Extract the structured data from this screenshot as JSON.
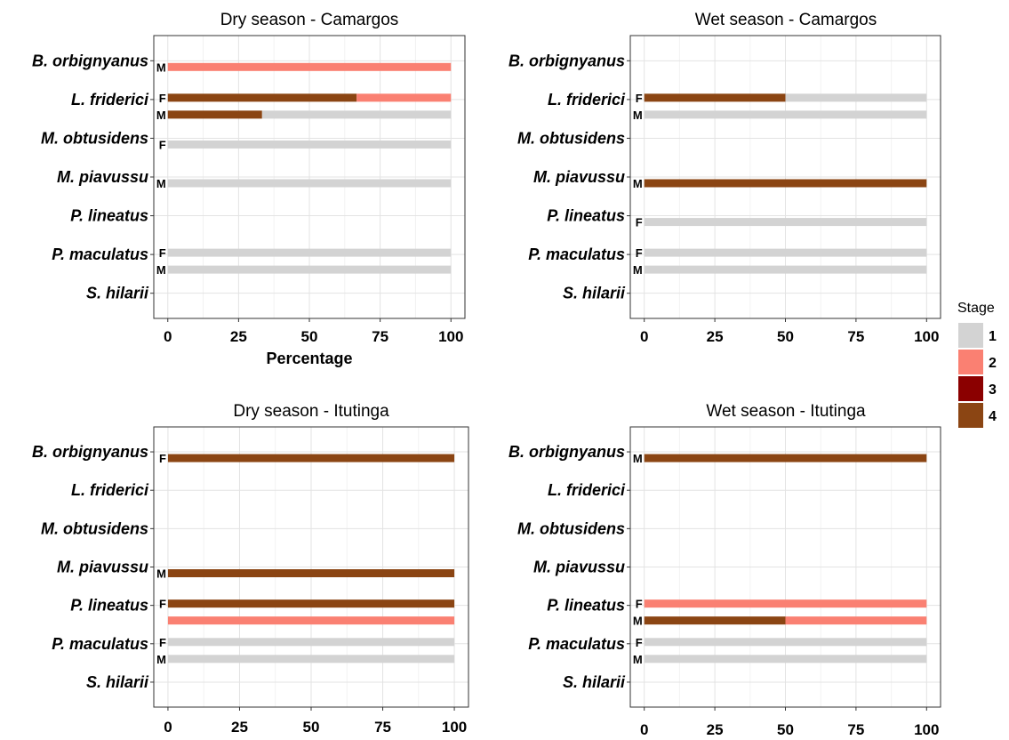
{
  "chart_data": {
    "type": "bar",
    "orientation": "horizontal",
    "stacked": true,
    "xlim": [
      0,
      100
    ],
    "xticks": [
      0,
      25,
      50,
      75,
      100
    ],
    "grid": true,
    "legend": {
      "title": "Stage",
      "placement": "right",
      "entries": [
        {
          "label": "1",
          "color": "#D3D3D3"
        },
        {
          "label": "2",
          "color": "#FA8072"
        },
        {
          "label": "3",
          "color": "#8B0000"
        },
        {
          "label": "4",
          "color": "#8B4513"
        }
      ]
    },
    "categories": [
      "B. orbignyanus",
      "L. friderici",
      "M. obtusidens",
      "M. piavussu",
      "P. lineatus",
      "P. maculatus",
      "S. hilarii"
    ],
    "panels": [
      {
        "title": "Dry season - Camargos",
        "xlabel": "Percentage",
        "bars": [
          {
            "species": "B. orbignyanus",
            "sex": "M",
            "segments": [
              {
                "stage": "2",
                "value": 100
              }
            ]
          },
          {
            "species": "L. friderici",
            "sex": "F",
            "segments": [
              {
                "stage": "4",
                "value": 66.7
              },
              {
                "stage": "2",
                "value": 33.3
              }
            ]
          },
          {
            "species": "L. friderici",
            "sex": "M",
            "segments": [
              {
                "stage": "4",
                "value": 33.3
              },
              {
                "stage": "1",
                "value": 66.7
              }
            ]
          },
          {
            "species": "M. obtusidens",
            "sex": "F",
            "segments": [
              {
                "stage": "1",
                "value": 100
              }
            ]
          },
          {
            "species": "M. piavussu",
            "sex": "M",
            "segments": [
              {
                "stage": "1",
                "value": 100
              }
            ]
          },
          {
            "species": "P. maculatus",
            "sex": "F",
            "segments": [
              {
                "stage": "1",
                "value": 100
              }
            ]
          },
          {
            "species": "P. maculatus",
            "sex": "M",
            "segments": [
              {
                "stage": "1",
                "value": 100
              }
            ]
          }
        ]
      },
      {
        "title": "Wet season - Camargos",
        "xlabel": "",
        "bars": [
          {
            "species": "L. friderici",
            "sex": "F",
            "segments": [
              {
                "stage": "4",
                "value": 50
              },
              {
                "stage": "1",
                "value": 50
              }
            ]
          },
          {
            "species": "L. friderici",
            "sex": "M",
            "segments": [
              {
                "stage": "1",
                "value": 100
              }
            ]
          },
          {
            "species": "M. piavussu",
            "sex": "M",
            "segments": [
              {
                "stage": "4",
                "value": 100
              }
            ]
          },
          {
            "species": "P. lineatus",
            "sex": "F",
            "segments": [
              {
                "stage": "1",
                "value": 100
              }
            ]
          },
          {
            "species": "P. maculatus",
            "sex": "F",
            "segments": [
              {
                "stage": "1",
                "value": 100
              }
            ]
          },
          {
            "species": "P. maculatus",
            "sex": "M",
            "segments": [
              {
                "stage": "1",
                "value": 100
              }
            ]
          }
        ]
      },
      {
        "title": "Dry season - Itutinga",
        "xlabel": "",
        "bars": [
          {
            "species": "B. orbignyanus",
            "sex": "F",
            "segments": [
              {
                "stage": "4",
                "value": 100
              }
            ]
          },
          {
            "species": "M. piavussu",
            "sex": "M",
            "segments": [
              {
                "stage": "4",
                "value": 100
              }
            ]
          },
          {
            "species": "P. lineatus",
            "sex": "F",
            "segments": [
              {
                "stage": "4",
                "value": 100
              }
            ]
          },
          {
            "species": "P. lineatus",
            "sex": "",
            "segments": [
              {
                "stage": "2",
                "value": 100
              }
            ]
          },
          {
            "species": "P. maculatus",
            "sex": "F",
            "segments": [
              {
                "stage": "1",
                "value": 100
              }
            ]
          },
          {
            "species": "P. maculatus",
            "sex": "M",
            "segments": [
              {
                "stage": "1",
                "value": 100
              }
            ]
          }
        ]
      },
      {
        "title": "Wet season - Itutinga",
        "xlabel": "",
        "bars": [
          {
            "species": "B. orbignyanus",
            "sex": "M",
            "segments": [
              {
                "stage": "4",
                "value": 100
              }
            ]
          },
          {
            "species": "P. lineatus",
            "sex": "F",
            "segments": [
              {
                "stage": "2",
                "value": 100
              }
            ]
          },
          {
            "species": "P. lineatus",
            "sex": "M",
            "segments": [
              {
                "stage": "4",
                "value": 50
              },
              {
                "stage": "2",
                "value": 50
              }
            ]
          },
          {
            "species": "P. maculatus",
            "sex": "F",
            "segments": [
              {
                "stage": "1",
                "value": 100
              }
            ]
          },
          {
            "species": "P. maculatus",
            "sex": "M",
            "segments": [
              {
                "stage": "1",
                "value": 100
              }
            ]
          }
        ]
      }
    ]
  }
}
